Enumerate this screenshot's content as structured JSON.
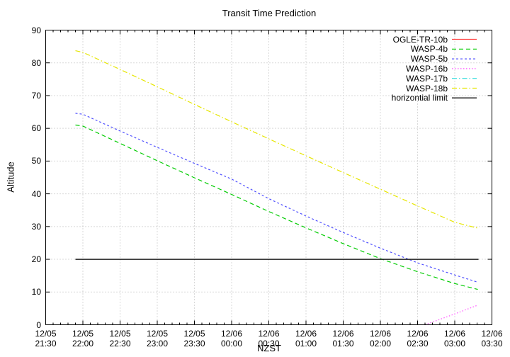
{
  "title": "Transit Time Prediction",
  "chart_data": {
    "type": "line",
    "title": "Transit Time Prediction",
    "xlabel": "NZST",
    "ylabel": "Altitude",
    "ylim": [
      0,
      90
    ],
    "x_range": [
      "12/05 21:30",
      "12/06 03:30"
    ],
    "grid": true,
    "legend_position": "top-right-inside",
    "y_ticks": [
      90,
      80,
      70,
      60,
      50,
      40,
      30,
      20,
      10,
      0
    ],
    "x_ticks": [
      {
        "date": "12/05",
        "time": "21:30",
        "t": 21.5
      },
      {
        "date": "12/05",
        "time": "22:00",
        "t": 22.0
      },
      {
        "date": "12/05",
        "time": "22:30",
        "t": 22.5
      },
      {
        "date": "12/05",
        "time": "23:00",
        "t": 23.0
      },
      {
        "date": "12/05",
        "time": "23:30",
        "t": 23.5
      },
      {
        "date": "12/06",
        "time": "00:00",
        "t": 24.0
      },
      {
        "date": "12/06",
        "time": "00:30",
        "t": 24.5
      },
      {
        "date": "12/06",
        "time": "01:00",
        "t": 25.0
      },
      {
        "date": "12/06",
        "time": "01:30",
        "t": 25.5
      },
      {
        "date": "12/06",
        "time": "02:00",
        "t": 26.0
      },
      {
        "date": "12/06",
        "time": "02:30",
        "t": 26.5
      },
      {
        "date": "12/06",
        "time": "03:00",
        "t": 27.0
      },
      {
        "date": "12/06",
        "time": "03:30",
        "t": 27.5
      }
    ],
    "series": [
      {
        "name": "OGLE-TR-10b",
        "color": "#ff4040",
        "dash": "",
        "points": []
      },
      {
        "name": "WASP-4b",
        "color": "#00cc00",
        "dash": "6,4",
        "points": [
          [
            21.9,
            61.0
          ],
          [
            22.0,
            60.7
          ],
          [
            22.5,
            55.4
          ],
          [
            23.0,
            50.1
          ],
          [
            23.5,
            44.9
          ],
          [
            24.0,
            39.8
          ],
          [
            24.5,
            34.6
          ],
          [
            25.0,
            29.6
          ],
          [
            25.5,
            24.8
          ],
          [
            26.0,
            20.2
          ],
          [
            26.5,
            16.2
          ],
          [
            27.0,
            12.6
          ],
          [
            27.31,
            10.8
          ]
        ]
      },
      {
        "name": "WASP-5b",
        "color": "#5050ff",
        "dash": "3,3",
        "points": [
          [
            21.9,
            64.6
          ],
          [
            22.0,
            64.3
          ],
          [
            22.5,
            59.2
          ],
          [
            23.0,
            54.2
          ],
          [
            23.5,
            49.3
          ],
          [
            24.0,
            44.5
          ],
          [
            24.5,
            38.5
          ],
          [
            25.0,
            33.2
          ],
          [
            25.5,
            28.2
          ],
          [
            26.0,
            23.4
          ],
          [
            26.5,
            18.9
          ],
          [
            27.0,
            15.2
          ],
          [
            27.31,
            13.0
          ]
        ]
      },
      {
        "name": "WASP-16b",
        "color": "#ff50ff",
        "dash": "1.5,2.5",
        "points": [
          [
            26.6,
            0.0
          ],
          [
            27.0,
            3.3
          ],
          [
            27.31,
            6.0
          ]
        ]
      },
      {
        "name": "WASP-17b",
        "color": "#33dddd",
        "dash": "7,3,1.5,3",
        "points": []
      },
      {
        "name": "WASP-18b",
        "color": "#e6e600",
        "dash": "7,3,1.5,3",
        "points": [
          [
            21.9,
            83.7
          ],
          [
            22.0,
            83.2
          ],
          [
            22.5,
            78.0
          ],
          [
            23.0,
            72.7
          ],
          [
            23.5,
            67.3
          ],
          [
            24.0,
            62.0
          ],
          [
            24.5,
            56.8
          ],
          [
            25.0,
            51.6
          ],
          [
            25.5,
            46.5
          ],
          [
            26.0,
            41.4
          ],
          [
            26.5,
            36.3
          ],
          [
            27.0,
            31.3
          ],
          [
            27.31,
            29.5
          ]
        ]
      },
      {
        "name": "horizontial limit",
        "color": "#202020",
        "dash": "",
        "points": [
          [
            21.9,
            20.0
          ],
          [
            27.32,
            20.0
          ]
        ]
      }
    ]
  }
}
